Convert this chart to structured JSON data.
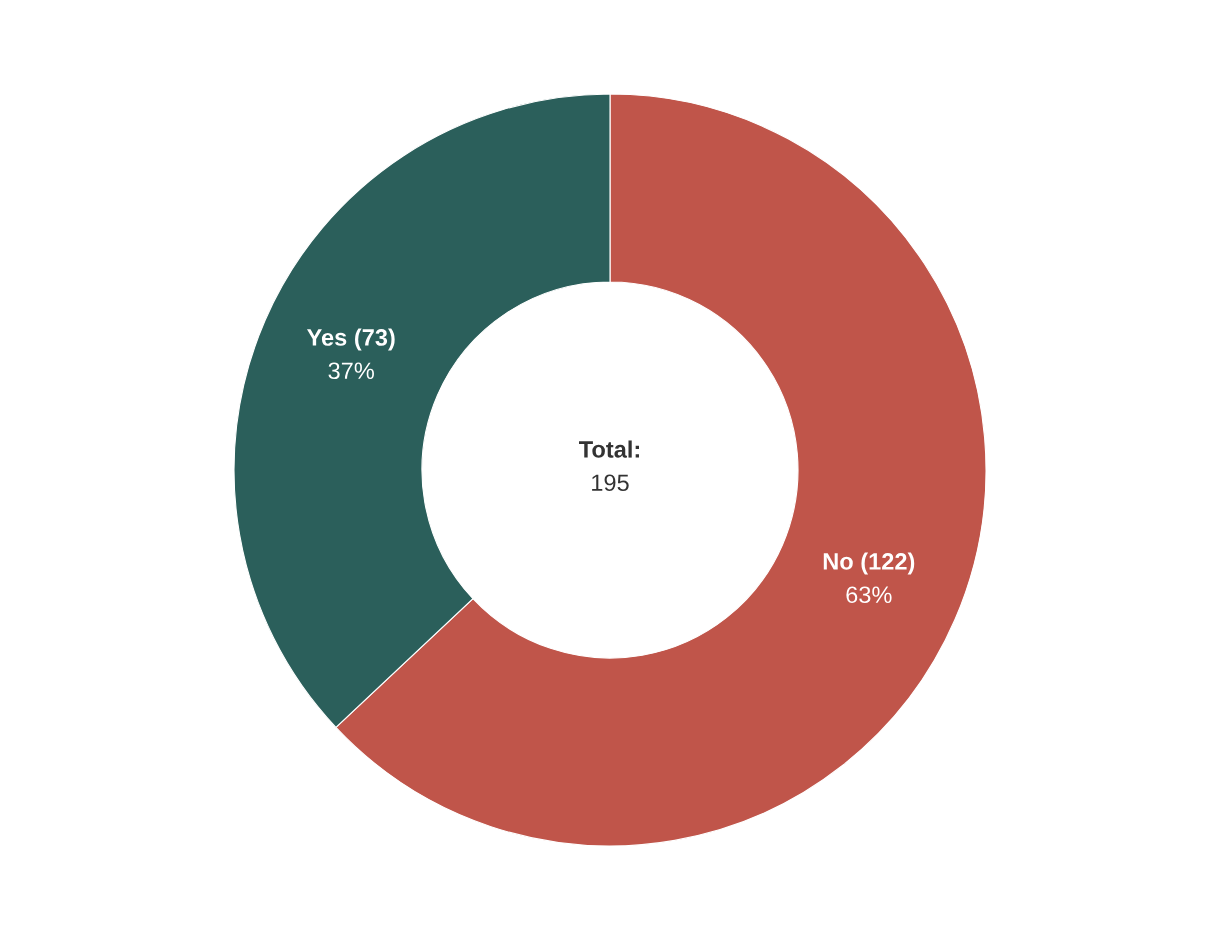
{
  "chart_data": {
    "type": "donut",
    "categories": [
      "No (122)",
      "Yes (73)"
    ],
    "values": [
      63,
      37
    ],
    "colors": [
      "#c0554a",
      "#2b5f5b"
    ],
    "value_labels": [
      "63%",
      "37%"
    ],
    "annotations": [
      "Total:",
      "195"
    ]
  }
}
